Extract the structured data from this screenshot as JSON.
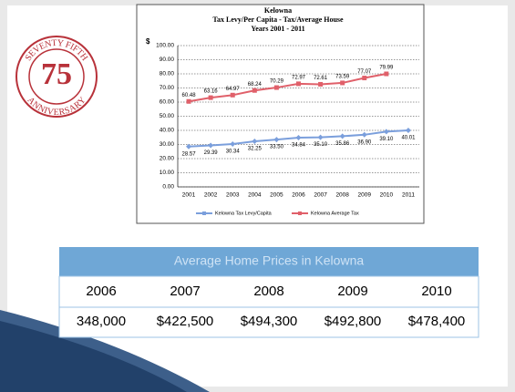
{
  "logo": {
    "top": "SEVENTY FIFTH",
    "bottom": "ANNIVERSARY",
    "number": "75"
  },
  "chart_data": {
    "type": "line",
    "title": "Kelowna",
    "subtitle": "Tax Levy/Per Capita - Tax/Average House",
    "subtitle2": "Years 2001 - 2011",
    "y_label": "$",
    "categories": [
      "2001",
      "2002",
      "2003",
      "2004",
      "2005",
      "2006",
      "2007",
      "2008",
      "2009",
      "2010",
      "2011"
    ],
    "series": [
      {
        "name": "Kelowna Tax Levy/Capita",
        "color": "#7b9fdc",
        "marker": "diamond",
        "values": [
          28.57,
          29.39,
          30.34,
          32.25,
          33.5,
          34.84,
          35.1,
          35.86,
          36.9,
          39.1,
          40.01
        ],
        "value_labels": [
          "28.57",
          "29.39",
          "30.34",
          "32.25",
          "33.50",
          "34.84",
          "35.10",
          "35.86",
          "36.90",
          "39.10",
          "40.01"
        ]
      },
      {
        "name": "Kelowna Average Tax",
        "color": "#e0606a",
        "marker": "square",
        "values": [
          60.48,
          63.16,
          64.97,
          68.24,
          70.29,
          72.97,
          72.61,
          73.59,
          77.07,
          79.99,
          null
        ],
        "value_labels": [
          "60.48",
          "63.16",
          "64.97",
          "68.24",
          "70.29",
          "72.97",
          "72.61",
          "73.59",
          "77.07",
          "79.99",
          null
        ]
      }
    ],
    "ylim": [
      0,
      100
    ],
    "yticks": [
      {
        "value": 0,
        "label": "0.00"
      },
      {
        "value": 10,
        "label": "10.00"
      },
      {
        "value": 20,
        "label": "20.00"
      },
      {
        "value": 30,
        "label": "30.00"
      },
      {
        "value": 40,
        "label": "40.00"
      },
      {
        "value": 50,
        "label": "50.00"
      },
      {
        "value": 60,
        "label": "60.00"
      },
      {
        "value": 70,
        "label": "70.00"
      },
      {
        "value": 80,
        "label": "80.00"
      },
      {
        "value": 90,
        "label": "90.00"
      },
      {
        "value": 100,
        "label": "100.00"
      }
    ],
    "grid": true,
    "legend": "bottom"
  },
  "table": {
    "title": "Average Home Prices in Kelowna",
    "header": [
      "2006",
      "2007",
      "2008",
      "2009",
      "2010"
    ],
    "rows": [
      [
        "348,000",
        "$422,500",
        "$494,300",
        "$492,800",
        "$478,400"
      ]
    ]
  }
}
